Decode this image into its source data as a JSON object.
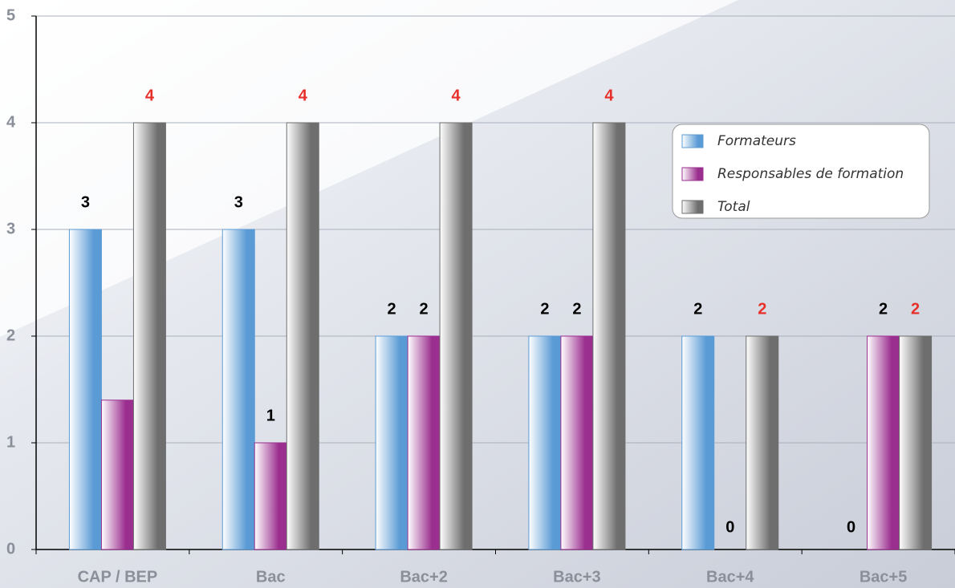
{
  "chart_data": {
    "type": "bar",
    "categories": [
      "CAP / BEP",
      "Bac",
      "Bac+2",
      "Bac+3",
      "Bac+4",
      "Bac+5"
    ],
    "series": [
      {
        "name": "Formateurs",
        "color": "#5b9bd5",
        "label_color": "#000000",
        "values": [
          3,
          3,
          2,
          2,
          2,
          0
        ]
      },
      {
        "name": "Responsables de formation",
        "color": "#9b2f8f",
        "label_color": "#000000",
        "values": [
          1.4,
          1,
          2,
          2,
          0,
          2
        ],
        "value_labels": [
          null,
          "1",
          "2",
          "2",
          "0",
          "2"
        ]
      },
      {
        "name": "Total",
        "color": "#6e6e6e",
        "label_color": "#e8302a",
        "values": [
          4,
          4,
          4,
          4,
          2,
          2
        ]
      }
    ],
    "ylim": [
      0,
      5
    ],
    "yticks": [
      0,
      1,
      2,
      3,
      4,
      5
    ],
    "grid": true
  }
}
